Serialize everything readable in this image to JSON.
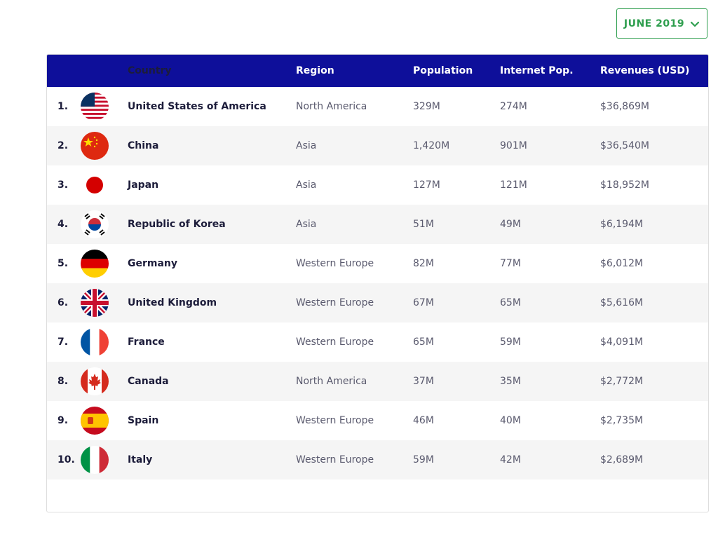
{
  "filter": {
    "month_label": "JUNE 2019"
  },
  "table": {
    "headers": {
      "country": "Country",
      "region": "Region",
      "population": "Population",
      "internet_pop": "Internet Pop.",
      "revenues": "Revenues (USD)"
    },
    "rows": [
      {
        "rank": "1.",
        "flag": "usa-flag-icon",
        "country": "United States of America",
        "region": "North America",
        "population": "329M",
        "internet_pop": "274M",
        "revenues": "$36,869M"
      },
      {
        "rank": "2.",
        "flag": "china-flag-icon",
        "country": "China",
        "region": "Asia",
        "population": "1,420M",
        "internet_pop": "901M",
        "revenues": "$36,540M"
      },
      {
        "rank": "3.",
        "flag": "japan-flag-icon",
        "country": "Japan",
        "region": "Asia",
        "population": "127M",
        "internet_pop": "121M",
        "revenues": "$18,952M"
      },
      {
        "rank": "4.",
        "flag": "korea-flag-icon",
        "country": "Republic of Korea",
        "region": "Asia",
        "population": "51M",
        "internet_pop": "49M",
        "revenues": "$6,194M"
      },
      {
        "rank": "5.",
        "flag": "germany-flag-icon",
        "country": "Germany",
        "region": "Western Europe",
        "population": "82M",
        "internet_pop": "77M",
        "revenues": "$6,012M"
      },
      {
        "rank": "6.",
        "flag": "uk-flag-icon",
        "country": "United Kingdom",
        "region": "Western Europe",
        "population": "67M",
        "internet_pop": "65M",
        "revenues": "$5,616M"
      },
      {
        "rank": "7.",
        "flag": "france-flag-icon",
        "country": "France",
        "region": "Western Europe",
        "population": "65M",
        "internet_pop": "59M",
        "revenues": "$4,091M"
      },
      {
        "rank": "8.",
        "flag": "canada-flag-icon",
        "country": "Canada",
        "region": "North America",
        "population": "37M",
        "internet_pop": "35M",
        "revenues": "$2,772M"
      },
      {
        "rank": "9.",
        "flag": "spain-flag-icon",
        "country": "Spain",
        "region": "Western Europe",
        "population": "46M",
        "internet_pop": "40M",
        "revenues": "$2,735M"
      },
      {
        "rank": "10.",
        "flag": "italy-flag-icon",
        "country": "Italy",
        "region": "Western Europe",
        "population": "59M",
        "internet_pop": "42M",
        "revenues": "$2,689M"
      }
    ]
  },
  "colors": {
    "header_bg": "#0e0f9a",
    "accent_green": "#2e9e4e"
  }
}
